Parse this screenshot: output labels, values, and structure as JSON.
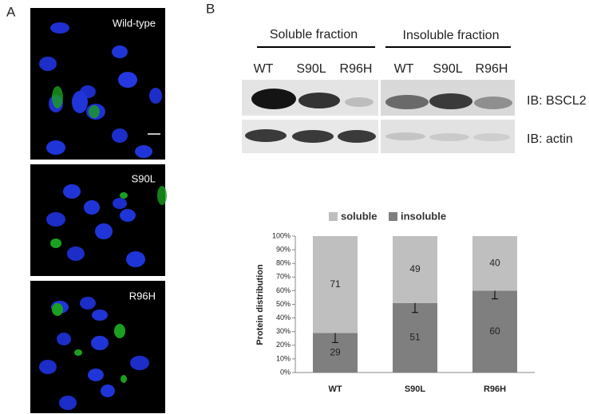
{
  "panel_a": {
    "label": "A",
    "images": [
      "Wild-type",
      "S90L",
      "R96H"
    ]
  },
  "panel_b": {
    "label": "B",
    "fractions": [
      "Soluble fraction",
      "Insoluble fraction"
    ],
    "lanes": [
      "WT",
      "S90L",
      "R96H",
      "WT",
      "S90L",
      "R96H"
    ],
    "blots": [
      "IB: BSCL2",
      "IB: actin"
    ]
  },
  "chart_data": {
    "type": "stacked_bar",
    "y_label": "Protein distribution",
    "categories": [
      "WT",
      "S90L",
      "R96H"
    ],
    "series": [
      {
        "name": "soluble",
        "color": "#bfbfbf",
        "values": [
          71,
          49,
          40
        ]
      },
      {
        "name": "insoluble",
        "color": "#7f7f7f",
        "values": [
          29,
          51,
          60
        ],
        "errors": [
          7,
          7,
          6
        ]
      }
    ],
    "ylim": [
      0,
      100
    ],
    "yticks": [
      {
        "value": 0,
        "label": "0%"
      },
      {
        "value": 10,
        "label": "10%"
      },
      {
        "value": 20,
        "label": "20%"
      },
      {
        "value": 30,
        "label": "30%"
      },
      {
        "value": 40,
        "label": "40%"
      },
      {
        "value": 50,
        "label": "50%"
      },
      {
        "value": 60,
        "label": "60%"
      },
      {
        "value": 70,
        "label": "70%"
      },
      {
        "value": 80,
        "label": "80%"
      },
      {
        "value": 90,
        "label": "90%"
      },
      {
        "value": 100,
        "label": "100%"
      }
    ],
    "legend": "top"
  }
}
